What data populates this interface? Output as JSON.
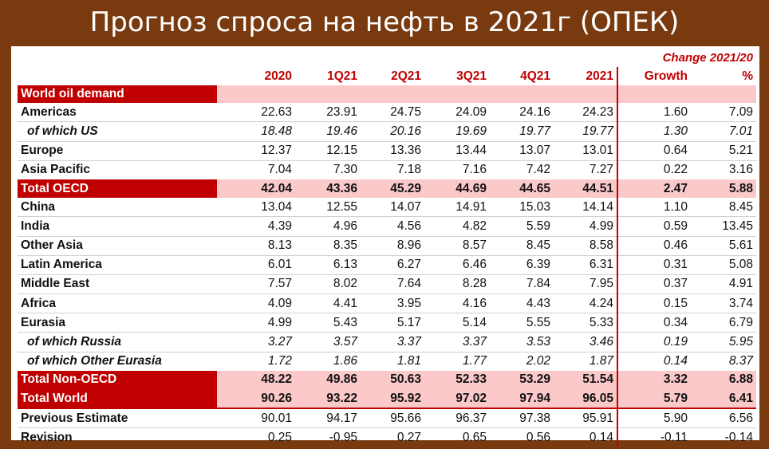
{
  "title": "Прогноз спроса на нефть в 2021г (ОПЕК)",
  "table": {
    "change_header": "Change 2021/20",
    "columns": [
      "",
      "2020",
      "1Q21",
      "2Q21",
      "3Q21",
      "4Q21",
      "2021",
      "Growth",
      "%"
    ],
    "section_label": "World oil demand",
    "rows": [
      {
        "label": "Americas",
        "style": "normal",
        "values": [
          "22.63",
          "23.91",
          "24.75",
          "24.09",
          "24.16",
          "24.23",
          "1.60",
          "7.09"
        ]
      },
      {
        "label": "of which US",
        "style": "italic",
        "values": [
          "18.48",
          "19.46",
          "20.16",
          "19.69",
          "19.77",
          "19.77",
          "1.30",
          "7.01"
        ]
      },
      {
        "label": "Europe",
        "style": "normal",
        "values": [
          "12.37",
          "12.15",
          "13.36",
          "13.44",
          "13.07",
          "13.01",
          "0.64",
          "5.21"
        ]
      },
      {
        "label": "Asia Pacific",
        "style": "normal",
        "values": [
          "7.04",
          "7.30",
          "7.18",
          "7.16",
          "7.42",
          "7.27",
          "0.22",
          "3.16"
        ]
      },
      {
        "label": "Total OECD",
        "style": "band",
        "values": [
          "42.04",
          "43.36",
          "45.29",
          "44.69",
          "44.65",
          "44.51",
          "2.47",
          "5.88"
        ]
      },
      {
        "label": "China",
        "style": "normal",
        "values": [
          "13.04",
          "12.55",
          "14.07",
          "14.91",
          "15.03",
          "14.14",
          "1.10",
          "8.45"
        ]
      },
      {
        "label": "India",
        "style": "normal",
        "values": [
          "4.39",
          "4.96",
          "4.56",
          "4.82",
          "5.59",
          "4.99",
          "0.59",
          "13.45"
        ]
      },
      {
        "label": "Other Asia",
        "style": "normal",
        "values": [
          "8.13",
          "8.35",
          "8.96",
          "8.57",
          "8.45",
          "8.58",
          "0.46",
          "5.61"
        ]
      },
      {
        "label": "Latin America",
        "style": "normal",
        "values": [
          "6.01",
          "6.13",
          "6.27",
          "6.46",
          "6.39",
          "6.31",
          "0.31",
          "5.08"
        ]
      },
      {
        "label": "Middle East",
        "style": "normal",
        "values": [
          "7.57",
          "8.02",
          "7.64",
          "8.28",
          "7.84",
          "7.95",
          "0.37",
          "4.91"
        ]
      },
      {
        "label": "Africa",
        "style": "normal",
        "values": [
          "4.09",
          "4.41",
          "3.95",
          "4.16",
          "4.43",
          "4.24",
          "0.15",
          "3.74"
        ]
      },
      {
        "label": "Eurasia",
        "style": "normal",
        "values": [
          "4.99",
          "5.43",
          "5.17",
          "5.14",
          "5.55",
          "5.33",
          "0.34",
          "6.79"
        ]
      },
      {
        "label": "of which Russia",
        "style": "italic",
        "values": [
          "3.27",
          "3.57",
          "3.37",
          "3.37",
          "3.53",
          "3.46",
          "0.19",
          "5.95"
        ]
      },
      {
        "label": "of which Other Eurasia",
        "style": "italic",
        "values": [
          "1.72",
          "1.86",
          "1.81",
          "1.77",
          "2.02",
          "1.87",
          "0.14",
          "8.37"
        ]
      },
      {
        "label": "Total Non-OECD",
        "style": "band",
        "values": [
          "48.22",
          "49.86",
          "50.63",
          "52.33",
          "53.29",
          "51.54",
          "3.32",
          "6.88"
        ]
      },
      {
        "label": "Total World",
        "style": "band",
        "values": [
          "90.26",
          "93.22",
          "95.92",
          "97.02",
          "97.94",
          "96.05",
          "5.79",
          "6.41"
        ]
      },
      {
        "label": "Previous Estimate",
        "style": "normal",
        "values": [
          "90.01",
          "94.17",
          "95.66",
          "96.37",
          "97.38",
          "95.91",
          "5.90",
          "6.56"
        ]
      },
      {
        "label": "Revision",
        "style": "normal",
        "values": [
          "0.25",
          "-0.95",
          "0.27",
          "0.65",
          "0.56",
          "0.14",
          "-0.11",
          "-0.14"
        ]
      }
    ]
  },
  "colors": {
    "frame": "#7a3a10",
    "accent_red": "#c00000",
    "band_pink": "#fbc9c9"
  }
}
